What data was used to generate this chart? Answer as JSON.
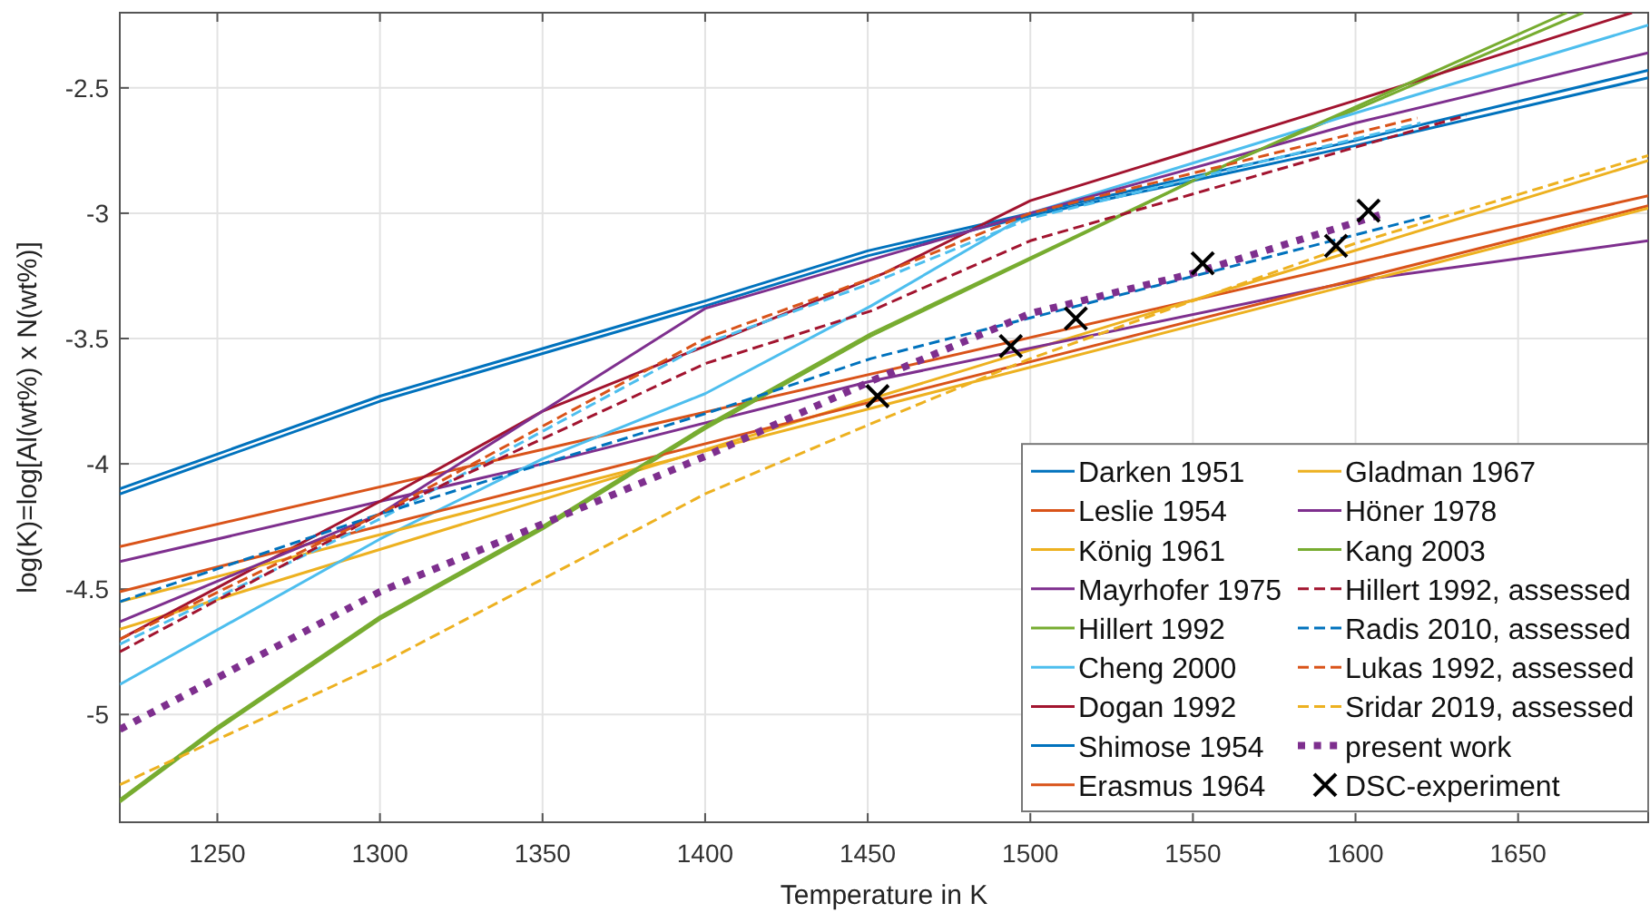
{
  "chart_data": {
    "type": "line",
    "xlabel": "Temperature in K",
    "ylabel": "log(K)=log[Al(wt%) x N(wt%)]",
    "xlim": [
      1220,
      1690
    ],
    "ylim": [
      -5.43,
      -2.2
    ],
    "xticks": [
      1250,
      1300,
      1350,
      1400,
      1450,
      1500,
      1550,
      1600,
      1650
    ],
    "yticks": [
      -5,
      -4.5,
      -4,
      -3.5,
      -3,
      -2.5
    ],
    "grid": true,
    "legend": "bottom right",
    "series": [
      {
        "name": "Darken 1951",
        "color": "#0072bd",
        "line_style": "solid",
        "x": [
          1220,
          1300,
          1400,
          1450,
          1500,
          1600,
          1690
        ],
        "values": [
          -4.1,
          -3.73,
          -3.35,
          -3.15,
          -3.0,
          -2.71,
          -2.43
        ]
      },
      {
        "name": "Leslie 1954",
        "color": "#d95319",
        "line_style": "solid",
        "x": [
          1220,
          1690
        ],
        "values": [
          -4.33,
          -2.93
        ]
      },
      {
        "name": "König 1961",
        "color": "#edb120",
        "line_style": "solid",
        "x": [
          1220,
          1690
        ],
        "values": [
          -4.66,
          -2.79
        ]
      },
      {
        "name": "Mayrhofer 1975",
        "color": "#7e2f8e",
        "line_style": "solid",
        "x": [
          1220,
          1350,
          1451,
          1600,
          1690
        ],
        "values": [
          -4.39,
          -4.0,
          -3.67,
          -3.27,
          -3.11
        ]
      },
      {
        "name": "Hillert 1992",
        "color": "#77ac30",
        "line_style": "solid",
        "x": [
          1220,
          1250,
          1300,
          1350,
          1400,
          1451,
          1563,
          1670
        ],
        "values": [
          -5.35,
          -5.06,
          -4.62,
          -4.26,
          -3.86,
          -3.49,
          -2.79,
          -2.2
        ]
      },
      {
        "name": "Cheng 2000",
        "color": "#4dbeee",
        "line_style": "solid",
        "x": [
          1220,
          1300,
          1350,
          1400,
          1451,
          1500,
          1600,
          1690
        ],
        "values": [
          -4.88,
          -4.3,
          -3.98,
          -3.72,
          -3.37,
          -3.0,
          -2.6,
          -2.25
        ]
      },
      {
        "name": "Dogan 1992",
        "color": "#a2142f",
        "line_style": "solid",
        "x": [
          1220,
          1300,
          1350,
          1400,
          1455,
          1500,
          1600,
          1685
        ],
        "values": [
          -4.7,
          -4.15,
          -3.79,
          -3.53,
          -3.24,
          -2.95,
          -2.55,
          -2.2
        ]
      },
      {
        "name": "Shimose 1954",
        "color": "#0072bd",
        "line_style": "solid",
        "x": [
          1220,
          1300,
          1400,
          1450,
          1500,
          1600,
          1690
        ],
        "values": [
          -4.12,
          -3.75,
          -3.37,
          -3.17,
          -3.01,
          -2.73,
          -2.46
        ]
      },
      {
        "name": "Erasmus 1964",
        "color": "#d95319",
        "line_style": "solid",
        "x": [
          1220,
          1690
        ],
        "values": [
          -4.51,
          -2.97
        ]
      },
      {
        "name": "Gladman 1967",
        "color": "#edb120",
        "line_style": "solid",
        "x": [
          1220,
          1690
        ],
        "values": [
          -4.55,
          -2.98
        ]
      },
      {
        "name": "Höner 1978",
        "color": "#7e2f8e",
        "line_style": "solid",
        "x": [
          1220,
          1300,
          1400,
          1500,
          1600,
          1690
        ],
        "values": [
          -4.63,
          -4.2,
          -3.38,
          -3.0,
          -2.64,
          -2.36
        ]
      },
      {
        "name": "Kang 2003",
        "color": "#77ac30",
        "line_style": "solid",
        "x": [
          1220,
          1250,
          1300,
          1350,
          1400,
          1451,
          1563,
          1665
        ],
        "values": [
          -5.34,
          -5.05,
          -4.61,
          -4.25,
          -3.85,
          -3.48,
          -2.79,
          -2.2
        ]
      },
      {
        "color": "#4dbeee",
        "line_style": "dashed",
        "x": [
          1220,
          1300,
          1400,
          1451,
          1500,
          1620
        ],
        "values": [
          -4.72,
          -4.22,
          -3.52,
          -3.28,
          -3.02,
          -2.64
        ]
      },
      {
        "name": "Hillert 1992, assessed",
        "color": "#a2142f",
        "line_style": "dashed",
        "x": [
          1220,
          1300,
          1400,
          1451,
          1500,
          1634
        ],
        "values": [
          -4.75,
          -4.2,
          -3.6,
          -3.39,
          -3.11,
          -2.61
        ]
      },
      {
        "name": "Radis 2010, assessed",
        "color": "#0072bd",
        "line_style": "dashed",
        "x": [
          1220,
          1300,
          1400,
          1451,
          1623
        ],
        "values": [
          -4.55,
          -4.2,
          -3.8,
          -3.58,
          -3.01
        ]
      },
      {
        "name": "Lukas 1992, assessed",
        "color": "#d95319",
        "line_style": "dashed",
        "x": [
          1220,
          1300,
          1400,
          1451,
          1500,
          1619
        ],
        "values": [
          -4.7,
          -4.2,
          -3.5,
          -3.26,
          -3.0,
          -2.62
        ]
      },
      {
        "name": "Sridar 2019, assessed",
        "color": "#edb120",
        "line_style": "dashed",
        "x": [
          1220,
          1300,
          1400,
          1451,
          1500,
          1600,
          1690
        ],
        "values": [
          -5.28,
          -4.8,
          -4.12,
          -3.84,
          -3.58,
          -3.12,
          -2.77
        ]
      },
      {
        "name": "present work",
        "color": "#7e2f8e",
        "line_style": "dotted",
        "x": [
          1220,
          1300,
          1400,
          1451,
          1500,
          1550,
          1609
        ],
        "values": [
          -5.06,
          -4.51,
          -3.97,
          -3.67,
          -3.4,
          -3.24,
          -3.0
        ]
      },
      {
        "name": "DSC-experiment",
        "type": "scatter",
        "marker": "cross",
        "color": "#000000",
        "x": [
          1453,
          1494,
          1514,
          1553,
          1594,
          1604
        ],
        "values": [
          -3.73,
          -3.53,
          -3.42,
          -3.2,
          -3.13,
          -2.99
        ]
      }
    ]
  }
}
